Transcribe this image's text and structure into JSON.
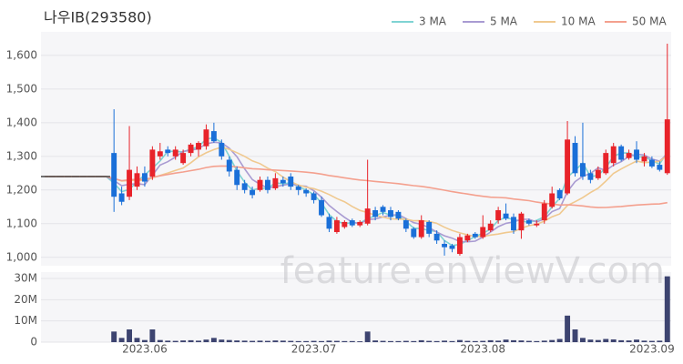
{
  "chart_data": {
    "type": "candlestick",
    "title": "나우IB(293580)",
    "watermark": "feature.enViewV.com",
    "categories": [
      null,
      null,
      null,
      null,
      null,
      null,
      null,
      null,
      null,
      null,
      null,
      null,
      null,
      "2023.06",
      null,
      null,
      null,
      null,
      null,
      null,
      null,
      null,
      null,
      null,
      null,
      null,
      null,
      null,
      null,
      null,
      null,
      null,
      null,
      null,
      null,
      "2023.07",
      null,
      null,
      null,
      null,
      null,
      null,
      null,
      null,
      null,
      null,
      null,
      null,
      null,
      null,
      null,
      null,
      null,
      null,
      null,
      null,
      null,
      "2023.08",
      null,
      null,
      null,
      null,
      null,
      null,
      null,
      null,
      null,
      null,
      null,
      null,
      null,
      null,
      null,
      null,
      null,
      null,
      null,
      null,
      null,
      "2023.09",
      null,
      null
    ],
    "open": [
      1240,
      1240,
      1240,
      1240,
      1240,
      1240,
      1240,
      1240,
      1240,
      1310,
      1190,
      1180,
      1210,
      1250,
      1240,
      1300,
      1320,
      1300,
      1280,
      1310,
      1320,
      1330,
      1375,
      1340,
      1290,
      1260,
      1220,
      1200,
      1200,
      1230,
      1205,
      1230,
      1240,
      1210,
      1200,
      1190,
      1170,
      1120,
      1075,
      1090,
      1110,
      1095,
      1100,
      1140,
      1150,
      1140,
      1135,
      1110,
      1085,
      1060,
      1105,
      1070,
      1040,
      1035,
      1010,
      1050,
      1070,
      1060,
      1080,
      1110,
      1130,
      1120,
      1080,
      1110,
      1095,
      1110,
      1150,
      1200,
      1190,
      1340,
      1280,
      1250,
      1235,
      1250,
      1280,
      1330,
      1295,
      1320,
      1285,
      1290,
      1275,
      1250
    ],
    "high": [
      1240,
      1240,
      1240,
      1240,
      1240,
      1240,
      1240,
      1240,
      1240,
      1440,
      1210,
      1390,
      1270,
      1270,
      1330,
      1340,
      1330,
      1330,
      1320,
      1340,
      1345,
      1395,
      1400,
      1350,
      1300,
      1270,
      1230,
      1210,
      1240,
      1240,
      1250,
      1240,
      1250,
      1215,
      1205,
      1195,
      1180,
      1130,
      1120,
      1110,
      1115,
      1110,
      1290,
      1150,
      1155,
      1150,
      1140,
      1115,
      1090,
      1125,
      1110,
      1080,
      1050,
      1040,
      1070,
      1070,
      1075,
      1125,
      1110,
      1150,
      1160,
      1130,
      1135,
      1115,
      1110,
      1170,
      1210,
      1205,
      1405,
      1360,
      1400,
      1260,
      1270,
      1320,
      1340,
      1335,
      1320,
      1345,
      1310,
      1300,
      1285,
      1635
    ],
    "low": [
      1240,
      1240,
      1240,
      1240,
      1240,
      1240,
      1240,
      1240,
      1240,
      1135,
      1155,
      1170,
      1200,
      1210,
      1230,
      1290,
      1300,
      1290,
      1275,
      1300,
      1300,
      1320,
      1340,
      1290,
      1240,
      1200,
      1190,
      1175,
      1195,
      1190,
      1200,
      1210,
      1200,
      1185,
      1180,
      1160,
      1120,
      1075,
      1070,
      1085,
      1090,
      1090,
      1095,
      1110,
      1125,
      1110,
      1110,
      1075,
      1055,
      1055,
      1060,
      1040,
      1005,
      1015,
      1005,
      1045,
      1055,
      1055,
      1075,
      1100,
      1110,
      1070,
      1055,
      1095,
      1090,
      1100,
      1145,
      1170,
      1185,
      1240,
      1230,
      1220,
      1230,
      1245,
      1270,
      1285,
      1290,
      1280,
      1270,
      1265,
      1255,
      1245
    ],
    "close": [
      1240,
      1240,
      1240,
      1240,
      1240,
      1240,
      1240,
      1240,
      1240,
      1180,
      1165,
      1260,
      1250,
      1225,
      1320,
      1315,
      1310,
      1320,
      1310,
      1335,
      1340,
      1380,
      1345,
      1300,
      1255,
      1215,
      1200,
      1185,
      1230,
      1200,
      1235,
      1220,
      1210,
      1200,
      1190,
      1170,
      1125,
      1085,
      1110,
      1105,
      1095,
      1105,
      1145,
      1120,
      1135,
      1120,
      1115,
      1085,
      1060,
      1110,
      1070,
      1050,
      1030,
      1025,
      1060,
      1065,
      1060,
      1090,
      1100,
      1140,
      1115,
      1080,
      1130,
      1100,
      1100,
      1160,
      1190,
      1175,
      1350,
      1250,
      1240,
      1230,
      1260,
      1310,
      1330,
      1290,
      1310,
      1290,
      1300,
      1270,
      1260,
      1410
    ],
    "volume": [
      0,
      0,
      0,
      0,
      0,
      0,
      0,
      0,
      0,
      5000000,
      2000000,
      6000000,
      2000000,
      1000000,
      6000000,
      1000000,
      700000,
      600000,
      800000,
      900000,
      700000,
      1200000,
      2000000,
      1200000,
      1000000,
      800000,
      700000,
      600000,
      700000,
      600000,
      800000,
      700000,
      600000,
      500000,
      500000,
      600000,
      500000,
      700000,
      600000,
      500000,
      500000,
      400000,
      5000000,
      800000,
      600000,
      500000,
      500000,
      600000,
      500000,
      900000,
      600000,
      500000,
      700000,
      500000,
      1000000,
      600000,
      500000,
      600000,
      900000,
      700000,
      1200000,
      900000,
      800000,
      600000,
      500000,
      700000,
      1000000,
      1500000,
      12500000,
      6000000,
      2000000,
      1200000,
      1000000,
      1500000,
      1300000,
      900000,
      800000,
      1200000,
      700000,
      600000,
      700000,
      31000000
    ],
    "up_color": "#e8232a",
    "down_color": "#1a6fd8",
    "volume_color": "#3d4470",
    "series": [
      {
        "name": "3 MA",
        "period": 3,
        "color": "#7fd3d3"
      },
      {
        "name": "5 MA",
        "period": 5,
        "color": "#a99bd2"
      },
      {
        "name": "10 MA",
        "period": 10,
        "color": "#f0c98f"
      },
      {
        "name": "50 MA",
        "period": 50,
        "color": "#f4a08e"
      }
    ],
    "ylim": [
      975,
      1670
    ],
    "yticks": [
      {
        "value": 1000,
        "label": "1,000"
      },
      {
        "value": 1100,
        "label": "1,100"
      },
      {
        "value": 1200,
        "label": "1,200"
      },
      {
        "value": 1300,
        "label": "1,300"
      },
      {
        "value": 1400,
        "label": "1,400"
      },
      {
        "value": 1500,
        "label": "1,500"
      },
      {
        "value": 1600,
        "label": "1,600"
      }
    ],
    "volume_ylim": [
      0,
      33000000
    ],
    "volume_yticks": [
      0,
      {
        "value": 10000000,
        "label": "10M"
      },
      {
        "value": 20000000,
        "label": "20M"
      },
      {
        "value": 30000000,
        "label": "30M"
      }
    ],
    "grid": true
  }
}
